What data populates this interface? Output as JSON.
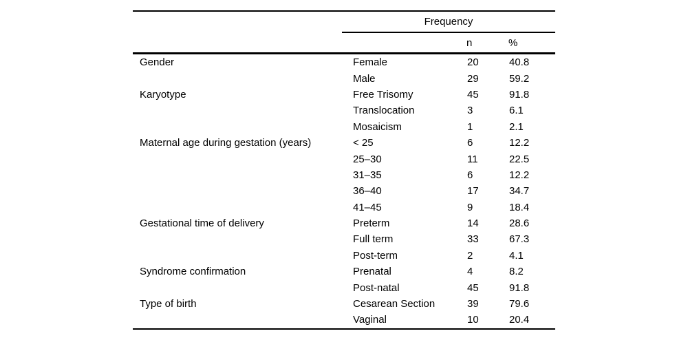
{
  "table": {
    "header": {
      "frequency_label": "Frequency",
      "n_label": "n",
      "pct_label": "%"
    },
    "rows": [
      {
        "category": "Gender",
        "sub": "Female",
        "n": "20",
        "pct": "40.8"
      },
      {
        "category": "",
        "sub": "Male",
        "n": "29",
        "pct": "59.2"
      },
      {
        "category": "Karyotype",
        "sub": "Free Trisomy",
        "n": "45",
        "pct": "91.8"
      },
      {
        "category": "",
        "sub": "Translocation",
        "n": "3",
        "pct": "6.1"
      },
      {
        "category": "",
        "sub": "Mosaicism",
        "n": "1",
        "pct": "2.1"
      },
      {
        "category": "Maternal age during gestation (years)",
        "sub": "< 25",
        "n": "6",
        "pct": "12.2"
      },
      {
        "category": "",
        "sub": "25–30",
        "n": "11",
        "pct": "22.5"
      },
      {
        "category": "",
        "sub": "31–35",
        "n": "6",
        "pct": "12.2"
      },
      {
        "category": "",
        "sub": "36–40",
        "n": "17",
        "pct": "34.7"
      },
      {
        "category": "",
        "sub": "41–45",
        "n": "9",
        "pct": "18.4"
      },
      {
        "category": "Gestational time of delivery",
        "sub": "Preterm",
        "n": "14",
        "pct": "28.6"
      },
      {
        "category": "",
        "sub": "Full term",
        "n": "33",
        "pct": "67.3"
      },
      {
        "category": "",
        "sub": "Post-term",
        "n": "2",
        "pct": "4.1"
      },
      {
        "category": "Syndrome confirmation",
        "sub": "Prenatal",
        "n": "4",
        "pct": "8.2"
      },
      {
        "category": "",
        "sub": "Post-natal",
        "n": "45",
        "pct": "91.8"
      },
      {
        "category": "Type of birth",
        "sub": "Cesarean Section",
        "n": "39",
        "pct": "79.6"
      },
      {
        "category": "",
        "sub": "Vaginal",
        "n": "10",
        "pct": "20.4"
      }
    ]
  }
}
